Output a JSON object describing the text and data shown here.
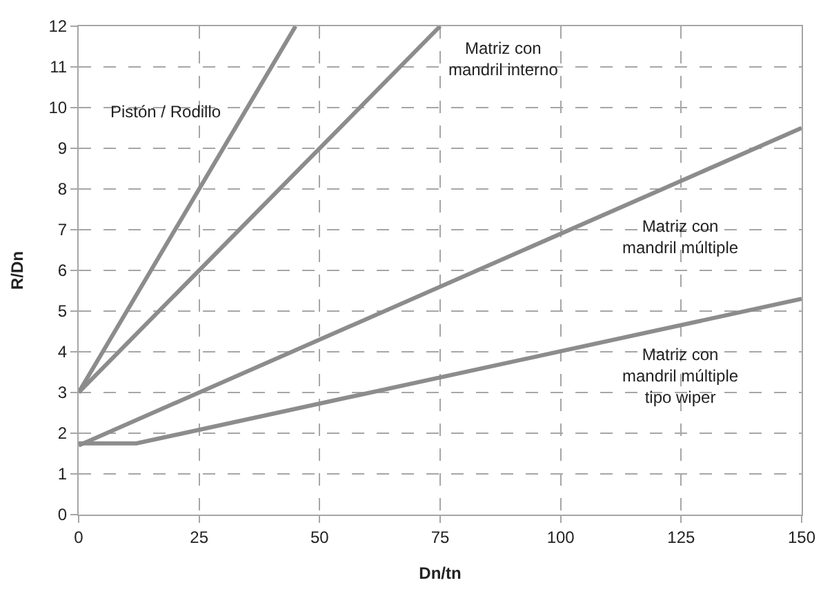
{
  "chart_data": {
    "type": "line",
    "xlabel": "Dn/tn",
    "ylabel": "R/Dn",
    "series": [
      {
        "name": "Pistón / Rodillo",
        "color": "#8c8c8c",
        "x": [
          0,
          45
        ],
        "values": [
          3,
          12
        ]
      },
      {
        "name": "Matriz con\nmandril interno",
        "color": "#8c8c8c",
        "x": [
          0,
          75
        ],
        "values": [
          3,
          12
        ]
      },
      {
        "name": "Matriz con\nmandril múltiple",
        "color": "#8c8c8c",
        "x": [
          0,
          150
        ],
        "values": [
          1.7,
          9.5
        ]
      },
      {
        "name": "Matriz con\nmandril múltiple\ntipo wiper",
        "color": "#8c8c8c",
        "x": [
          0,
          12,
          150
        ],
        "values": [
          1.75,
          1.75,
          5.3
        ]
      }
    ],
    "xlim": [
      0,
      150
    ],
    "xticks": [
      0,
      25,
      50,
      75,
      100,
      125,
      150
    ],
    "ylim": [
      0,
      12
    ],
    "yticks": [
      0,
      1,
      2,
      3,
      4,
      5,
      6,
      7,
      8,
      9,
      10,
      11,
      12
    ],
    "grid": true,
    "legend": false,
    "marker": "none",
    "line_style": "solid"
  }
}
